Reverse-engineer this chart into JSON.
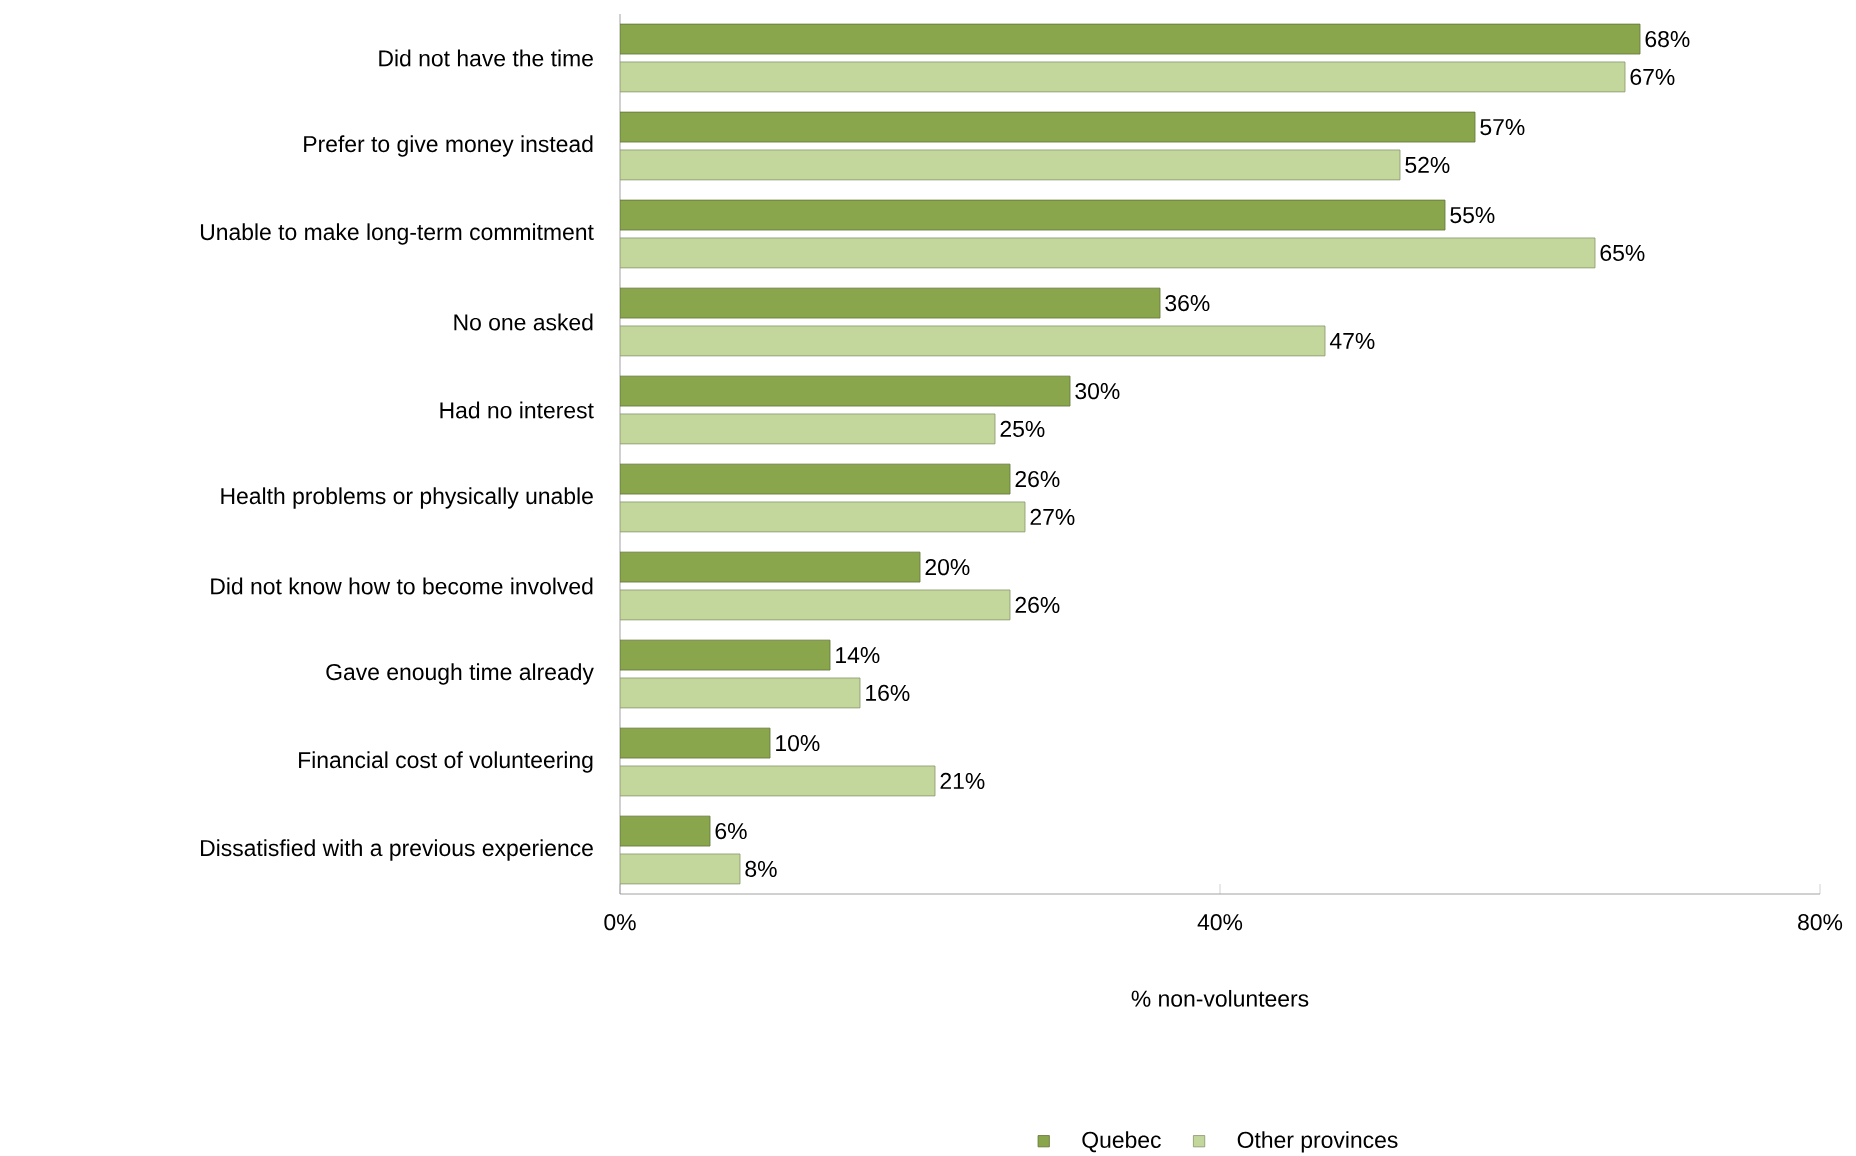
{
  "chart_data": {
    "type": "bar",
    "orientation": "horizontal",
    "categories": [
      "Did not have the time",
      "Prefer to give money instead",
      "Unable to make long-term commitment",
      "No one asked",
      "Had no interest",
      "Health problems or physically unable",
      "Did not know how to become involved",
      "Gave enough time already",
      "Financial cost of volunteering",
      "Dissatisfied with a previous experience"
    ],
    "series": [
      {
        "name": "Quebec",
        "color": "#8aa64c",
        "values": [
          68,
          57,
          55,
          36,
          30,
          26,
          20,
          14,
          10,
          6
        ],
        "value_labels": [
          "68%",
          "57%",
          "55%",
          "36%",
          "30%",
          "26%",
          "20%",
          "14%",
          "10%",
          "6%"
        ]
      },
      {
        "name": "Other provinces",
        "color": "#c3d69b",
        "values": [
          67,
          52,
          65,
          47,
          25,
          27,
          26,
          16,
          21,
          8
        ],
        "value_labels": [
          "67%",
          "52%",
          "65%",
          "47%",
          "25%",
          "27%",
          "26%",
          "16%",
          "21%",
          "8%"
        ]
      }
    ],
    "xlabel": "% non-volunteers",
    "xlim": [
      0,
      80
    ],
    "xticks": [
      {
        "value": 0,
        "label": "0%"
      },
      {
        "value": 40,
        "label": "40%"
      },
      {
        "value": 80,
        "label": "80%"
      }
    ],
    "legend": "bottom",
    "grid": false
  }
}
